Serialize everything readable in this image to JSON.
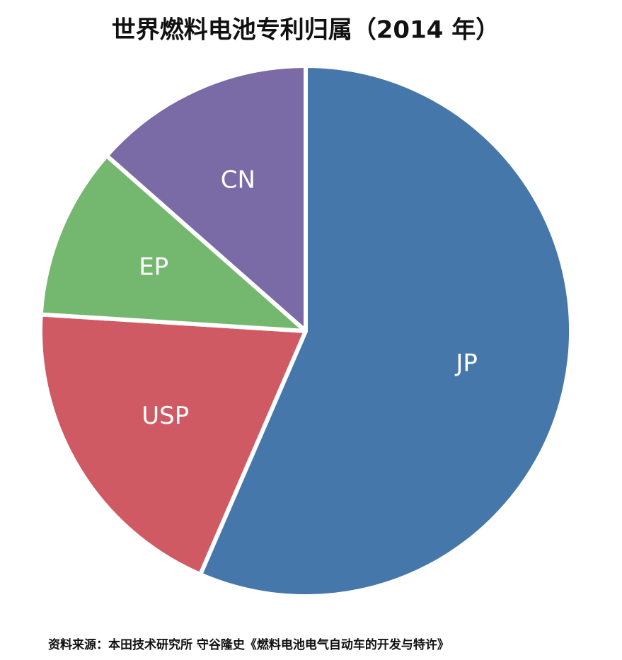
{
  "chart_data": {
    "type": "pie",
    "title": "世界燃料电池专利归属（2014 年）",
    "categories": [
      "JP",
      "USP",
      "EP",
      "CN"
    ],
    "values": [
      56.5,
      19.5,
      10.5,
      13.5
    ],
    "colors": [
      "#4677ab",
      "#cf5a63",
      "#74b76e",
      "#7a6aa5"
    ],
    "source": "资料来源：本田技术研究所 守谷隆史《燃料电池电气自动车的开发与特许》"
  }
}
